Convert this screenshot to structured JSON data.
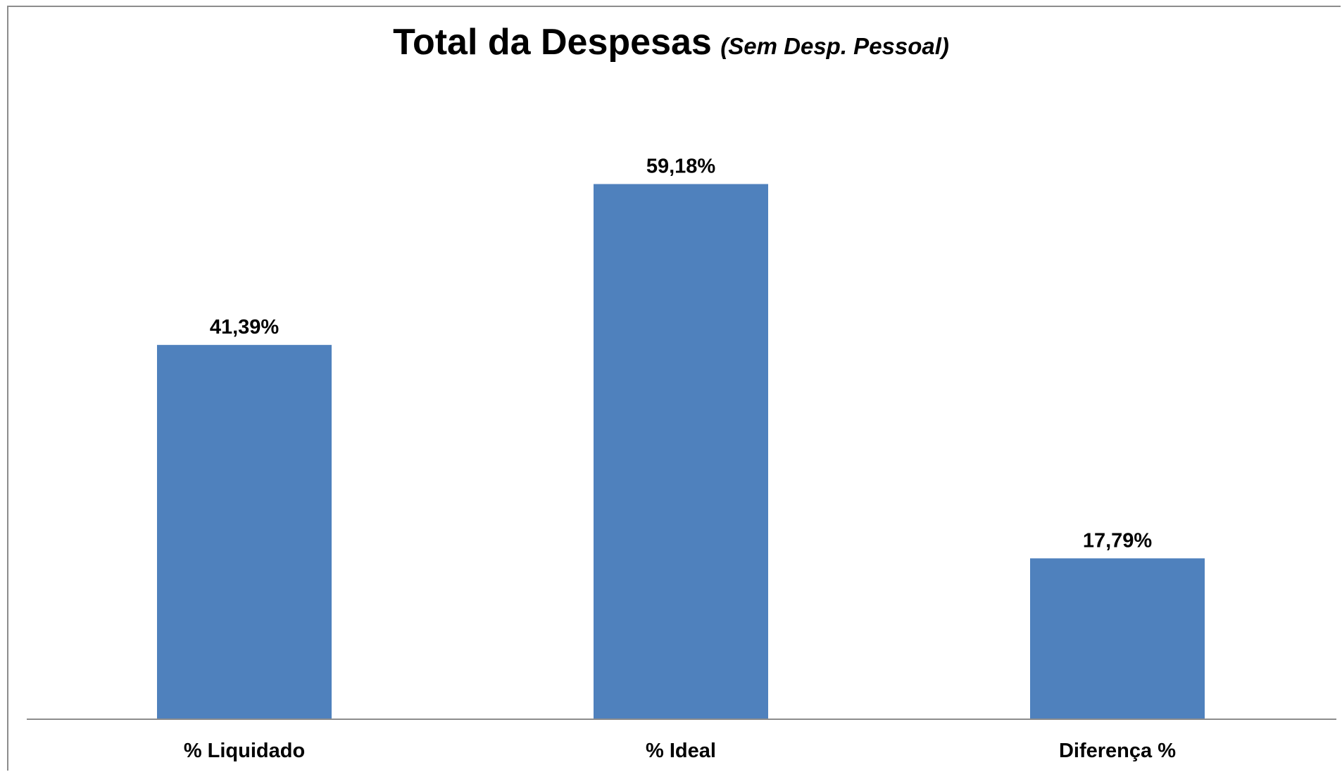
{
  "chart_data": {
    "type": "bar",
    "title": "Total da Despesas",
    "subtitle": "(Sem Desp. Pessoal)",
    "categories": [
      "% Liquidado",
      "% Ideal",
      "Diferença %"
    ],
    "values": [
      41.39,
      59.18,
      17.79
    ],
    "data_labels": [
      "41,39%",
      "59,18%",
      "17,79%"
    ],
    "xlabel": "",
    "ylabel": "",
    "ylim": [
      0,
      80
    ],
    "grid": false,
    "legend": "none",
    "bar_color": "#4f81bd"
  }
}
